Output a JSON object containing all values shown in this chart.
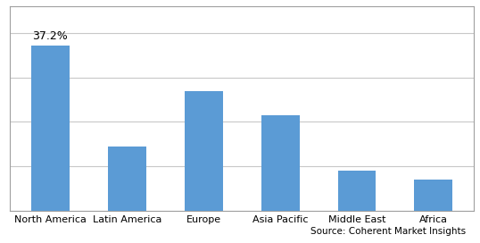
{
  "categories": [
    "North America",
    "Latin America",
    "Europe",
    "Asia Pacific",
    "Middle East",
    "Africa"
  ],
  "values": [
    37.2,
    14.5,
    27.0,
    21.5,
    9.0,
    7.0
  ],
  "bar_color": "#5b9bd5",
  "annotation_text": "37.2%",
  "annotation_index": 0,
  "source_text": "Source: Coherent Market Insights",
  "background_color": "#ffffff",
  "grid_color": "#c8c8c8",
  "border_color": "#a0a0a0",
  "ylim": [
    0,
    46
  ],
  "bar_width": 0.5,
  "tick_fontsize": 8.0,
  "annotation_fontsize": 9.0,
  "source_fontsize": 7.5
}
